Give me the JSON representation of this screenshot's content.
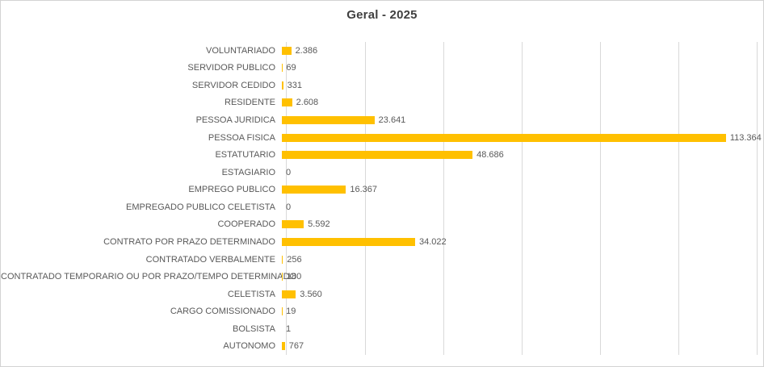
{
  "colors": {
    "bar": "#FFC000",
    "gridline": "#D9D9D9",
    "axis_line": "#D9D9D9",
    "label_text": "#595959",
    "title_text": "#404040",
    "frame_border": "#D3D3D3",
    "background": "#FFFFFF"
  },
  "chart_data": {
    "type": "bar",
    "orientation": "horizontal",
    "title": "Geral - 2025",
    "xlabel": "",
    "ylabel": "",
    "xlim": [
      0,
      120000
    ],
    "grid_step": 20000,
    "grid": true,
    "legend": false,
    "axis_tick_labels_visible": false,
    "categories": [
      "VOLUNTARIADO",
      "SERVIDOR PUBLICO",
      "SERVIDOR CEDIDO",
      "RESIDENTE",
      "PESSOA JURIDICA",
      "PESSOA FISICA",
      "ESTATUTARIO",
      "ESTAGIARIO",
      "EMPREGO PUBLICO",
      "EMPREGADO PUBLICO CELETISTA",
      "COOPERADO",
      "CONTRATO POR PRAZO DETERMINADO",
      "CONTRATADO VERBALMENTE",
      "CONTRATADO TEMPORARIO OU POR PRAZO/TEMPO DETERMINADO",
      "CELETISTA",
      "CARGO COMISSIONADO",
      "BOLSISTA",
      "AUTONOMO"
    ],
    "values": [
      2386,
      69,
      331,
      2608,
      23641,
      113364,
      48686,
      0,
      16367,
      0,
      5592,
      34022,
      256,
      180,
      3560,
      19,
      1,
      767
    ],
    "value_labels": [
      "2.386",
      "69",
      "331",
      "2.608",
      "23.641",
      "113.364",
      "48.686",
      "0",
      "16.367",
      "0",
      "5.592",
      "34.022",
      "256",
      "180",
      "3.560",
      "19",
      "1",
      "767"
    ]
  }
}
